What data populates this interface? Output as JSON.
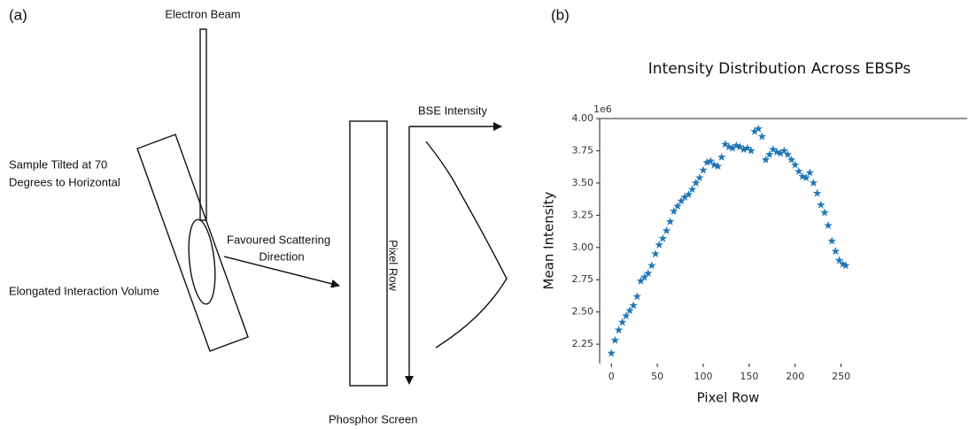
{
  "diagram": {
    "panel_label": "(a)",
    "electron_beam": "Electron Beam",
    "sample_label": [
      "Sample Tilted at 70",
      "Degrees to Horizontal"
    ],
    "scattering_label": [
      "Favoured Scattering",
      "Direction"
    ],
    "volume_label": "Elongated Interaction Volume",
    "intensity_axis": "BSE Intensity",
    "row_axis": "Pixel Row",
    "screen_label": "Phosphor Screen"
  },
  "chart_data": {
    "type": "scatter",
    "panel_label": "(b)",
    "title": "Intensity Distribution Across EBSPs",
    "xlabel": "Pixel Row",
    "ylabel": "Mean Intensity",
    "offset_label": "1e6",
    "color": "#1f77b4",
    "marker": "star",
    "xlim": [
      -12.75,
      267.75
    ],
    "ylim": [
      2.1,
      4.0
    ],
    "xticks": [
      0,
      50,
      100,
      150,
      200,
      250
    ],
    "yticks": [
      2.25,
      {
        "value": 2.5,
        "label": "2.50"
      },
      2.75,
      {
        "value": 3,
        "label": "3.00"
      },
      3.25,
      {
        "value": 3.5,
        "label": "3.50"
      },
      3.75,
      {
        "value": 4,
        "label": "4.00"
      }
    ],
    "x": [
      0,
      4,
      8,
      12,
      16,
      20,
      24,
      28,
      32,
      36,
      40,
      44,
      48,
      52,
      56,
      60,
      64,
      68,
      72,
      76,
      80,
      84,
      88,
      92,
      96,
      100,
      104,
      108,
      112,
      116,
      120,
      124,
      128,
      132,
      136,
      140,
      144,
      148,
      152,
      156,
      160,
      164,
      168,
      172,
      176,
      180,
      184,
      188,
      192,
      196,
      200,
      204,
      208,
      212,
      216,
      220,
      224,
      228,
      232,
      236,
      240,
      244,
      248,
      252,
      255
    ],
    "values": [
      2.18,
      2.28,
      2.36,
      2.42,
      2.47,
      2.51,
      2.55,
      2.62,
      2.74,
      2.77,
      2.8,
      2.86,
      2.95,
      3.02,
      3.07,
      3.13,
      3.2,
      3.28,
      3.32,
      3.36,
      3.39,
      3.41,
      3.45,
      3.5,
      3.54,
      3.6,
      3.66,
      3.67,
      3.64,
      3.63,
      3.7,
      3.8,
      3.78,
      3.77,
      3.79,
      3.78,
      3.76,
      3.77,
      3.75,
      3.9,
      3.92,
      3.86,
      3.68,
      3.72,
      3.76,
      3.74,
      3.73,
      3.75,
      3.72,
      3.68,
      3.64,
      3.59,
      3.55,
      3.54,
      3.58,
      3.5,
      3.42,
      3.33,
      3.27,
      3.17,
      3.05,
      2.97,
      2.9,
      2.87,
      2.86
    ]
  }
}
